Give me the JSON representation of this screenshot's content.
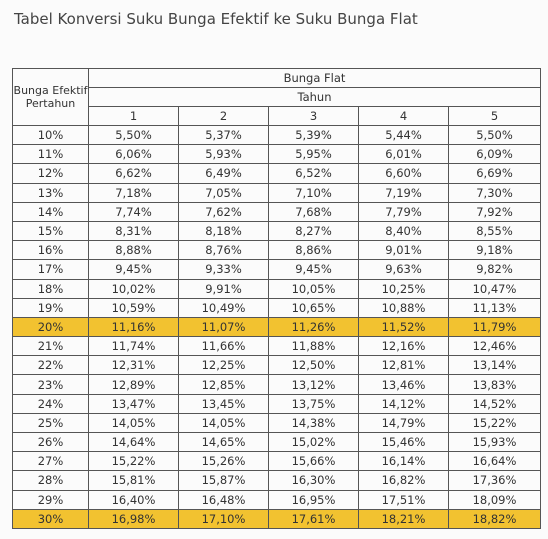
{
  "title": "Tabel Konversi Suku Bunga Efektif ke Suku Bunga Flat",
  "header": {
    "row_header": "Bunga Efektif Pertahun",
    "group": "Bunga Flat",
    "subgroup": "Tahun",
    "years": [
      "1",
      "2",
      "3",
      "4",
      "5"
    ]
  },
  "table": {
    "highlight_rows": [
      10,
      20
    ],
    "highlight_color": "#f2c230",
    "rows": [
      [
        "10%",
        "5,50%",
        "5,37%",
        "5,39%",
        "5,44%",
        "5,50%"
      ],
      [
        "11%",
        "6,06%",
        "5,93%",
        "5,95%",
        "6,01%",
        "6,09%"
      ],
      [
        "12%",
        "6,62%",
        "6,49%",
        "6,52%",
        "6,60%",
        "6,69%"
      ],
      [
        "13%",
        "7,18%",
        "7,05%",
        "7,10%",
        "7,19%",
        "7,30%"
      ],
      [
        "14%",
        "7,74%",
        "7,62%",
        "7,68%",
        "7,79%",
        "7,92%"
      ],
      [
        "15%",
        "8,31%",
        "8,18%",
        "8,27%",
        "8,40%",
        "8,55%"
      ],
      [
        "16%",
        "8,88%",
        "8,76%",
        "8,86%",
        "9,01%",
        "9,18%"
      ],
      [
        "17%",
        "9,45%",
        "9,33%",
        "9,45%",
        "9,63%",
        "9,82%"
      ],
      [
        "18%",
        "10,02%",
        "9,91%",
        "10,05%",
        "10,25%",
        "10,47%"
      ],
      [
        "19%",
        "10,59%",
        "10,49%",
        "10,65%",
        "10,88%",
        "11,13%"
      ],
      [
        "20%",
        "11,16%",
        "11,07%",
        "11,26%",
        "11,52%",
        "11,79%"
      ],
      [
        "21%",
        "11,74%",
        "11,66%",
        "11,88%",
        "12,16%",
        "12,46%"
      ],
      [
        "22%",
        "12,31%",
        "12,25%",
        "12,50%",
        "12,81%",
        "13,14%"
      ],
      [
        "23%",
        "12,89%",
        "12,85%",
        "13,12%",
        "13,46%",
        "13,83%"
      ],
      [
        "24%",
        "13,47%",
        "13,45%",
        "13,75%",
        "14,12%",
        "14,52%"
      ],
      [
        "25%",
        "14,05%",
        "14,05%",
        "14,38%",
        "14,79%",
        "15,22%"
      ],
      [
        "26%",
        "14,64%",
        "14,65%",
        "15,02%",
        "15,46%",
        "15,93%"
      ],
      [
        "27%",
        "15,22%",
        "15,26%",
        "15,66%",
        "16,14%",
        "16,64%"
      ],
      [
        "28%",
        "15,81%",
        "15,87%",
        "16,30%",
        "16,82%",
        "17,36%"
      ],
      [
        "29%",
        "16,40%",
        "16,48%",
        "16,95%",
        "17,51%",
        "18,09%"
      ],
      [
        "30%",
        "16,98%",
        "17,10%",
        "17,61%",
        "18,21%",
        "18,82%"
      ]
    ]
  }
}
